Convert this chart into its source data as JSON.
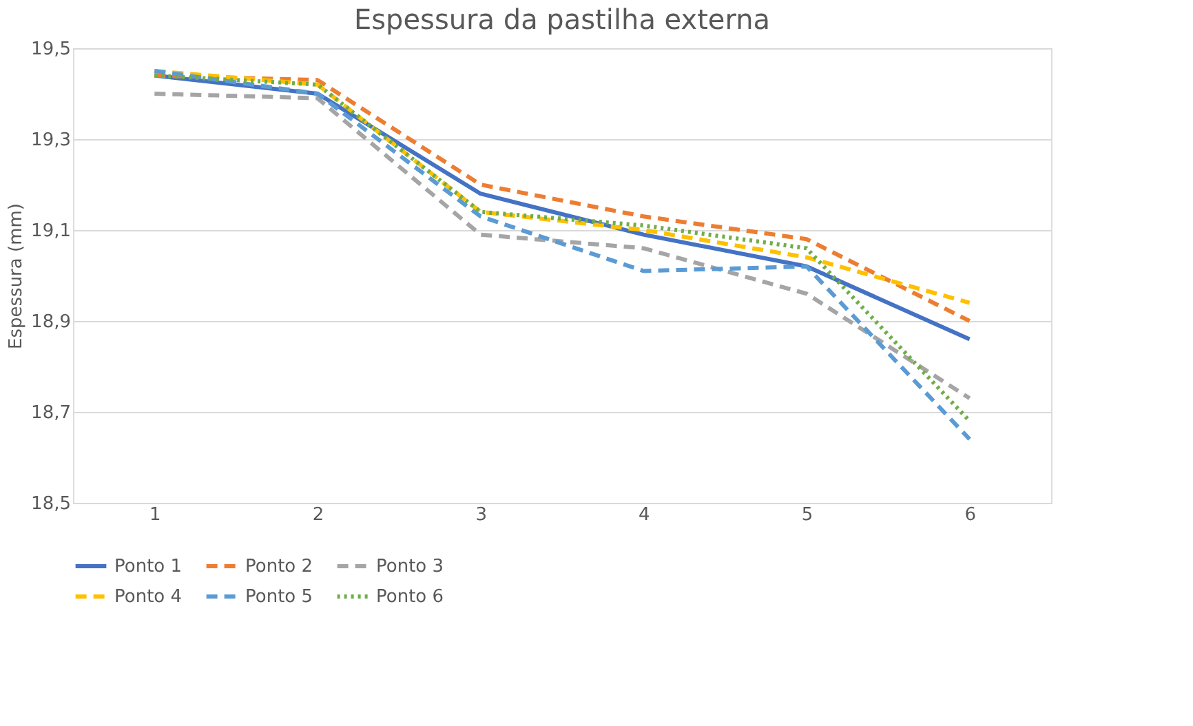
{
  "chart_data": {
    "type": "line",
    "title": "Espessura da pastilha externa",
    "ylabel": "Espessura (mm)",
    "categories": [
      "1",
      "2",
      "3",
      "4",
      "5",
      "6"
    ],
    "series": [
      {
        "name": "Ponto 1",
        "color": "#4472c4",
        "line_style": "solid",
        "values": [
          19.44,
          19.4,
          19.18,
          19.09,
          19.02,
          18.86
        ]
      },
      {
        "name": "Ponto 2",
        "color": "#ed7d31",
        "line_style": "dashed",
        "values": [
          19.44,
          19.43,
          19.2,
          19.13,
          19.08,
          18.9
        ]
      },
      {
        "name": "Ponto 3",
        "color": "#a5a5a5",
        "line_style": "dashed",
        "values": [
          19.4,
          19.39,
          19.09,
          19.06,
          18.96,
          18.73
        ]
      },
      {
        "name": "Ponto 4",
        "color": "#ffc000",
        "line_style": "dashed",
        "values": [
          19.45,
          19.42,
          19.14,
          19.1,
          19.04,
          18.94
        ]
      },
      {
        "name": "Ponto 5",
        "color": "#5b9bd5",
        "line_style": "dashed",
        "values": [
          19.45,
          19.4,
          19.13,
          19.01,
          19.02,
          18.64
        ]
      },
      {
        "name": "Ponto 6",
        "color": "#70ad47",
        "line_style": "dotted",
        "values": [
          19.44,
          19.42,
          19.14,
          19.11,
          19.06,
          18.68
        ]
      }
    ],
    "ylim": [
      18.5,
      19.5
    ],
    "yticks": [
      {
        "value": 18.5,
        "label": "18,5"
      },
      {
        "value": 18.7,
        "label": "18,7"
      },
      {
        "value": 18.9,
        "label": "18,9"
      },
      {
        "value": 19.1,
        "label": "19,1"
      },
      {
        "value": 19.3,
        "label": "19,3"
      },
      {
        "value": 19.5,
        "label": "19,5"
      }
    ],
    "grid": "y",
    "legend": "bottom",
    "marker": "none"
  }
}
